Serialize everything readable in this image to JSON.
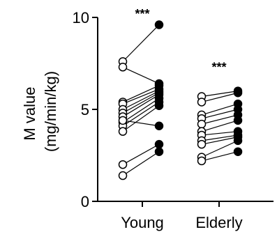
{
  "chart_data": {
    "type": "scatter",
    "subtype": "paired-before-after",
    "ylabel_line1": "M value",
    "ylabel_line2": "(mg/min/kg)",
    "ylim": [
      0,
      10
    ],
    "yticks": [
      0,
      5,
      10
    ],
    "categories": [
      "Young",
      "Elderly"
    ],
    "colors": {
      "axis": "#000000",
      "open_marker_fill": "#ffffff",
      "filled_marker": "#000000"
    },
    "groups": [
      {
        "category": "Young",
        "annotation": "***",
        "pairs": [
          [
            7.6,
            9.6
          ],
          [
            7.3,
            6.4
          ],
          [
            5.4,
            6.3
          ],
          [
            5.3,
            6.1
          ],
          [
            5.0,
            6.0
          ],
          [
            4.8,
            5.9
          ],
          [
            4.6,
            5.8
          ],
          [
            4.3,
            5.6
          ],
          [
            4.1,
            5.4
          ],
          [
            3.8,
            5.2
          ],
          [
            4.4,
            4.1
          ],
          [
            2.0,
            3.1
          ],
          [
            1.4,
            2.7
          ]
        ]
      },
      {
        "category": "Elderly",
        "annotation": "***",
        "pairs": [
          [
            5.7,
            6.0
          ],
          [
            5.4,
            5.9
          ],
          [
            4.7,
            5.3
          ],
          [
            4.5,
            5.0
          ],
          [
            4.2,
            4.7
          ],
          [
            3.8,
            4.4
          ],
          [
            3.6,
            3.8
          ],
          [
            3.3,
            3.6
          ],
          [
            3.1,
            3.5
          ],
          [
            2.4,
            3.3
          ],
          [
            2.2,
            2.7
          ]
        ]
      }
    ]
  }
}
